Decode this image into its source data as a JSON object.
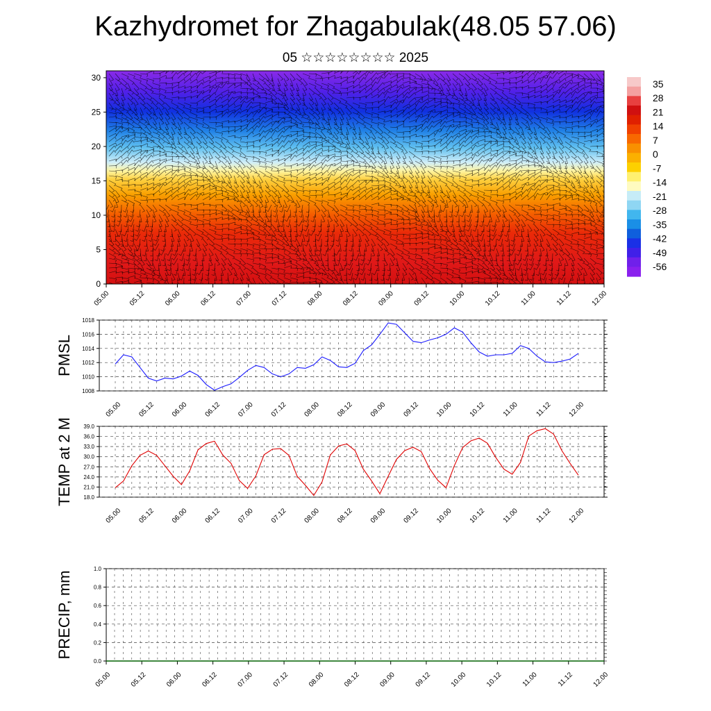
{
  "header": {
    "title": "Kazhydromet for Zhagabulak(48.05 57.06)",
    "subtitle": "05 ☆☆☆☆☆☆☆☆ 2025"
  },
  "colors": {
    "pmsl_line": "#1a1aff",
    "temp_line": "#e00000",
    "precip_line": "#006000",
    "colorbar": [
      "#f7c9c9",
      "#f4a0a0",
      "#e84040",
      "#d01010",
      "#e02000",
      "#f04000",
      "#f86800",
      "#f99000",
      "#fbb000",
      "#fdd000",
      "#fff070",
      "#fffbc0",
      "#c6ecf7",
      "#8fd6f3",
      "#41b6ee",
      "#1a8fe6",
      "#0f5fdd",
      "#1a30e6",
      "#4020e8",
      "#7020ea",
      "#8a20ee"
    ]
  },
  "chart_data": [
    {
      "type": "heatmap",
      "title": "",
      "ylabel": "",
      "ylim": [
        0,
        31
      ],
      "yticks": [
        "0",
        "5",
        "10",
        "15",
        "20",
        "25",
        "30"
      ],
      "xticks": [
        "05.00",
        "05.12",
        "06.00",
        "06.12",
        "07.00",
        "07.12",
        "08.00",
        "08.12",
        "09.00",
        "09.12",
        "10.00",
        "10.12",
        "11.00",
        "11.12",
        "12.00"
      ],
      "colorbar_labels": [
        "35",
        "28",
        "21",
        "14",
        "7",
        "0",
        "-7",
        "-14",
        "-21",
        "-28",
        "-35",
        "-42",
        "-49",
        "-56"
      ],
      "overlay": "wind barbs",
      "temperature_profile": [
        {
          "height": 0,
          "value": 33
        },
        {
          "height": 5,
          "value": 24
        },
        {
          "height": 10,
          "value": 14
        },
        {
          "height": 15,
          "value": -2
        },
        {
          "height": 17,
          "value": -10
        },
        {
          "height": 20,
          "value": -25
        },
        {
          "height": 25,
          "value": -49
        },
        {
          "height": 30,
          "value": -58
        }
      ]
    },
    {
      "type": "line",
      "ylabel": "PMSL",
      "ylim": [
        1008,
        1018
      ],
      "yticks": [
        "1008",
        "1010",
        "1012",
        "1014",
        "1016",
        "1018"
      ],
      "xticks": [
        "05.00",
        "05.12",
        "06.00",
        "06.12",
        "07.00",
        "07.12",
        "08.00",
        "08.12",
        "09.00",
        "09.12",
        "10.00",
        "10.12",
        "11.00",
        "11.12",
        "12.00"
      ],
      "series": [
        {
          "values": [
            1011.8,
            1013.1,
            1012.8,
            1011.3,
            1009.8,
            1009.4,
            1009.8,
            1009.7,
            1010.1,
            1010.8,
            1010.2,
            1008.9,
            1008.1,
            1008.6,
            1009.0,
            1009.9,
            1010.9,
            1011.6,
            1011.3,
            1010.4,
            1010.0,
            1010.4,
            1011.3,
            1011.2,
            1011.7,
            1012.8,
            1012.3,
            1011.4,
            1011.3,
            1011.9,
            1013.7,
            1014.5,
            1016.0,
            1017.6,
            1017.4,
            1016.2,
            1015.0,
            1014.8,
            1015.2,
            1015.5,
            1016.0,
            1016.9,
            1016.3,
            1014.8,
            1013.5,
            1012.9,
            1013.1,
            1013.1,
            1013.3,
            1014.4,
            1014.0,
            1012.9,
            1012.1,
            1012.0,
            1012.2,
            1012.5,
            1013.3
          ]
        }
      ]
    },
    {
      "type": "line",
      "ylabel": "TEMP at 2 M",
      "ylim": [
        18.0,
        39.0
      ],
      "yticks": [
        "18.0",
        "21.0",
        "24.0",
        "27.0",
        "30.0",
        "33.0",
        "36.0",
        "39.0"
      ],
      "xticks": [
        "05.00",
        "05.12",
        "06.00",
        "06.12",
        "07.00",
        "07.12",
        "08.00",
        "08.12",
        "09.00",
        "09.12",
        "10.00",
        "10.12",
        "11.00",
        "11.12",
        "12.00"
      ],
      "series": [
        {
          "values": [
            20.8,
            22.8,
            27.3,
            30.4,
            31.7,
            30.4,
            27.3,
            24.2,
            21.7,
            25.8,
            32.0,
            33.9,
            34.6,
            30.5,
            28.0,
            22.9,
            20.6,
            24.3,
            30.6,
            32.2,
            32.4,
            30.4,
            24.2,
            21.5,
            18.5,
            22.5,
            30.5,
            33.2,
            33.8,
            31.8,
            26.3,
            22.8,
            19.0,
            24.2,
            29.2,
            31.8,
            32.8,
            31.5,
            26.5,
            23.0,
            20.8,
            27.3,
            32.7,
            34.7,
            35.5,
            34.0,
            29.8,
            26.3,
            24.8,
            28.3,
            36.1,
            37.7,
            38.3,
            36.7,
            31.8,
            28.0,
            24.5
          ]
        }
      ]
    },
    {
      "type": "line",
      "ylabel": "PRECIP, mm",
      "ylim": [
        0.0,
        1.0
      ],
      "yticks": [
        "0.0",
        "0.2",
        "0.4",
        "0.6",
        "0.8",
        "1.0"
      ],
      "xticks": [
        "05.00",
        "05.12",
        "06.00",
        "06.12",
        "07.00",
        "07.12",
        "08.00",
        "08.12",
        "09.00",
        "09.12",
        "10.00",
        "10.12",
        "11.00",
        "11.12",
        "12.00"
      ],
      "series": [
        {
          "values": [
            0,
            0,
            0,
            0,
            0,
            0,
            0,
            0,
            0,
            0,
            0,
            0,
            0,
            0,
            0,
            0,
            0,
            0,
            0,
            0,
            0,
            0,
            0,
            0,
            0,
            0,
            0,
            0,
            0,
            0,
            0,
            0,
            0,
            0,
            0,
            0,
            0,
            0,
            0,
            0,
            0,
            0,
            0,
            0,
            0,
            0,
            0,
            0,
            0,
            0,
            0,
            0,
            0,
            0,
            0,
            0,
            0
          ]
        }
      ]
    }
  ]
}
